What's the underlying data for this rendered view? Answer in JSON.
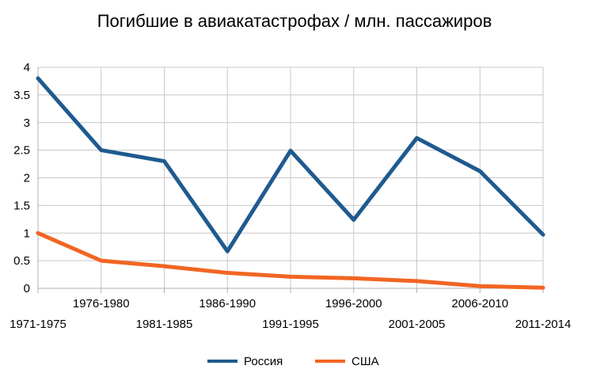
{
  "chart_data": {
    "type": "line",
    "title": "Погибшие в авиакатастрофах / млн. пассажиров",
    "xlabel": "",
    "ylabel": "",
    "categories": [
      "1971-1975",
      "1976-1980",
      "1981-1985",
      "1986-1990",
      "1991-1995",
      "1996-2000",
      "2001-2005",
      "2006-2010",
      "2011-2014"
    ],
    "series": [
      {
        "name": "Россия",
        "color": "#1f5a8f",
        "values": [
          3.8,
          2.5,
          2.3,
          0.67,
          2.49,
          1.24,
          2.72,
          2.12,
          0.97
        ]
      },
      {
        "name": "США",
        "color": "#f26522",
        "values": [
          1.0,
          0.5,
          0.4,
          0.28,
          0.21,
          0.18,
          0.13,
          0.04,
          0.01
        ]
      }
    ],
    "ylim": [
      0,
      4
    ],
    "yticks": [
      "0",
      "0.5",
      "1",
      "1.5",
      "2",
      "2.5",
      "3",
      "3.5",
      "4"
    ],
    "grid": true,
    "legend_position": "bottom"
  }
}
